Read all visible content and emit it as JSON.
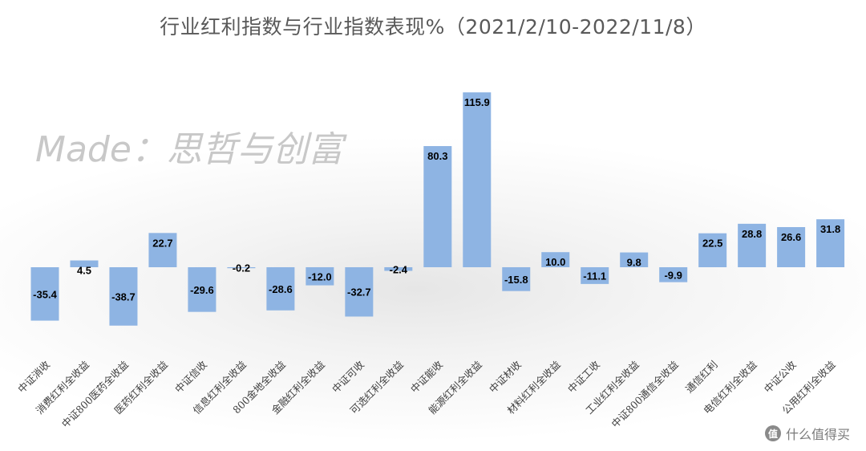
{
  "chart_data": {
    "type": "bar",
    "title": "行业红利指数与行业指数表现%（2021/2/10-2022/11/8）",
    "categories": [
      "中证消收",
      "消费红利全收益",
      "中证800医药全收益",
      "医药红利全收益",
      "中证信收",
      "信息红利全收益",
      "800金地全收益",
      "金融红利全收益",
      "中证可收",
      "可选红利全收益",
      "中证能收",
      "能源红利全收益",
      "中证材收",
      "材料红利全收益",
      "中证工收",
      "工业红利全收益",
      "中证800通信全收益",
      "通信红利",
      "电信红利全收益",
      "中证公收",
      "公用红利全收益"
    ],
    "values": [
      -35.4,
      4.5,
      -38.7,
      22.7,
      -29.6,
      -0.2,
      -28.6,
      -12.0,
      -32.7,
      -2.4,
      80.3,
      115.9,
      -15.8,
      10.0,
      -11.1,
      9.8,
      -9.9,
      22.5,
      28.8,
      26.6,
      31.8
    ],
    "data_labels": [
      "-35.4",
      "4.5",
      "-38.7",
      "22.7",
      "-29.6",
      "-0.2",
      "-28.6",
      "-12.0",
      "-32.7",
      "-2.4",
      "80.3",
      "115.9",
      "-15.8",
      "10.0",
      "-11.1",
      "9.8",
      "-9.9",
      "22.5",
      "28.8",
      "26.6",
      "31.8"
    ],
    "bar_color": "#8eb4e3",
    "grid": false,
    "legend": "none"
  },
  "watermark": "Made：思哲与创富",
  "site_logo": {
    "icon": "值",
    "text": "什么值得买"
  }
}
